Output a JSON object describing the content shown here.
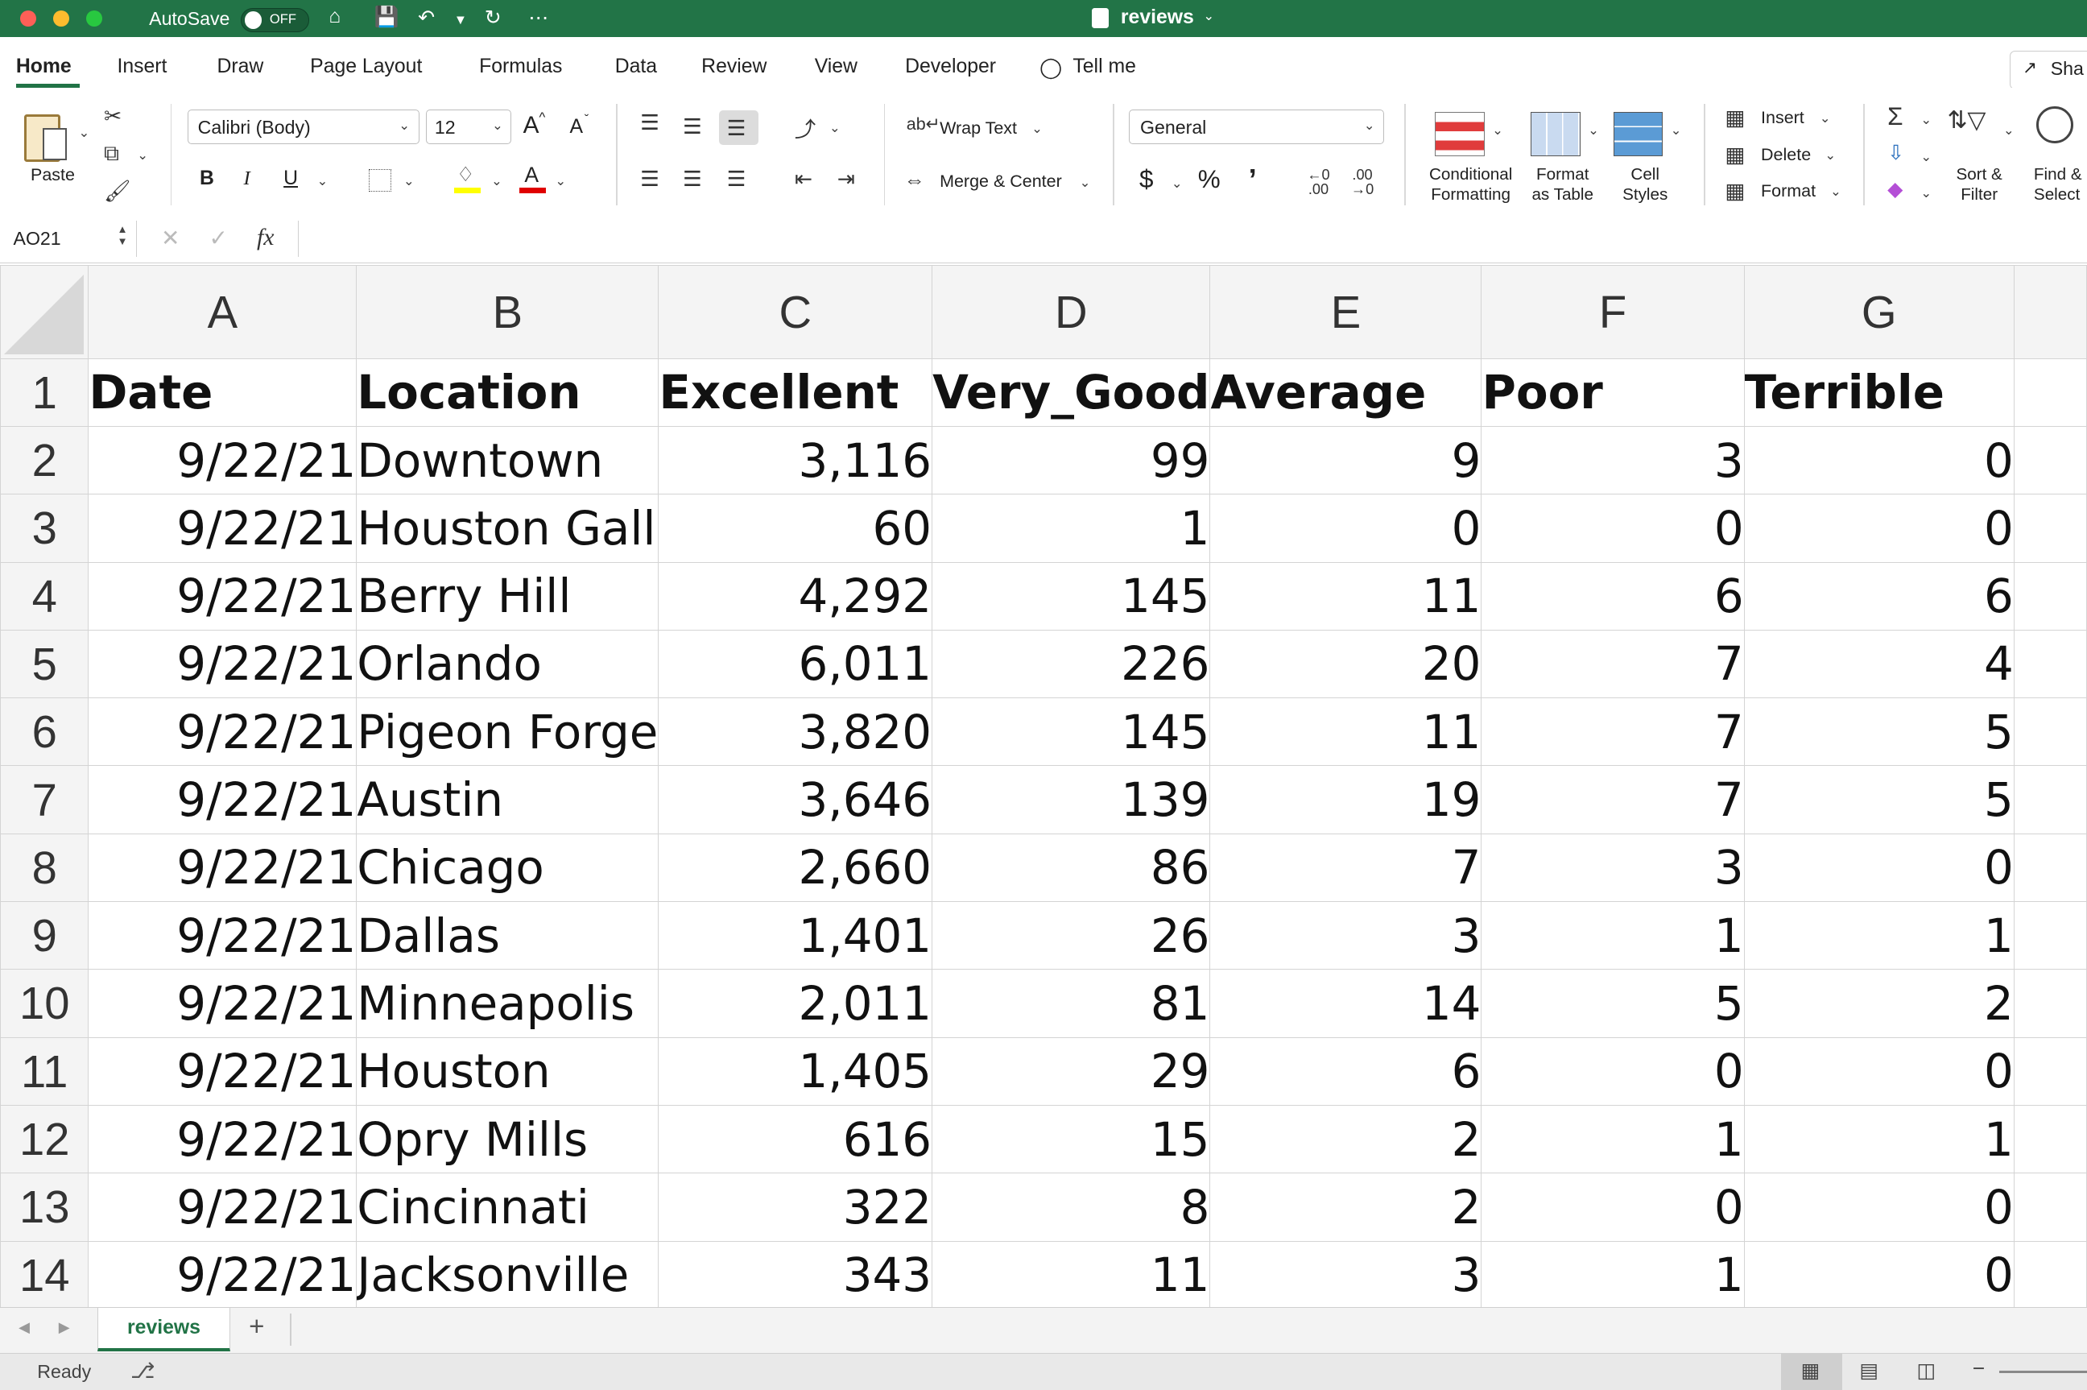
{
  "titlebar": {
    "autosave_label": "AutoSave",
    "autosave_state": "OFF",
    "doc_title": "reviews",
    "color": "#227447"
  },
  "tabs": [
    "Home",
    "Insert",
    "Draw",
    "Page Layout",
    "Formulas",
    "Data",
    "Review",
    "View",
    "Developer",
    "Tell me"
  ],
  "share_label": "Sha",
  "ribbon": {
    "paste": "Paste",
    "font_name": "Calibri (Body)",
    "font_size": "12",
    "grow_font": "A",
    "shrink_font": "A",
    "bold": "B",
    "italic": "I",
    "underline": "U",
    "font_color_letter": "A",
    "wrap_text": "Wrap Text",
    "merge_center": "Merge & Center",
    "number_format": "General",
    "currency": "$",
    "percent": "%",
    "comma": "’",
    "conditional_formatting_1": "Conditional",
    "conditional_formatting_2": "Formatting",
    "format_table_1": "Format",
    "format_table_2": "as Table",
    "cell_styles_1": "Cell",
    "cell_styles_2": "Styles",
    "insert": "Insert",
    "delete": "Delete",
    "format": "Format",
    "sort_filter_1": "Sort &",
    "sort_filter_2": "Filter",
    "find_select_1": "Find &",
    "find_select_2": "Select"
  },
  "formula_bar": {
    "name_box": "AO21",
    "fx": "fx",
    "value": ""
  },
  "columns": [
    "A",
    "B",
    "C",
    "D",
    "E",
    "F",
    "G"
  ],
  "header_row": [
    "Date",
    "Location",
    "Excellent",
    "Very_Good",
    "Average",
    "Poor",
    "Terrible"
  ],
  "rows": [
    [
      "9/22/21",
      "Downtown",
      "3,116",
      "99",
      "9",
      "3",
      "0"
    ],
    [
      "9/22/21",
      "Houston Gall",
      "60",
      "1",
      "0",
      "0",
      "0"
    ],
    [
      "9/22/21",
      "Berry Hill",
      "4,292",
      "145",
      "11",
      "6",
      "6"
    ],
    [
      "9/22/21",
      "Orlando",
      "6,011",
      "226",
      "20",
      "7",
      "4"
    ],
    [
      "9/22/21",
      "Pigeon Forge",
      "3,820",
      "145",
      "11",
      "7",
      "5"
    ],
    [
      "9/22/21",
      "Austin",
      "3,646",
      "139",
      "19",
      "7",
      "5"
    ],
    [
      "9/22/21",
      "Chicago",
      "2,660",
      "86",
      "7",
      "3",
      "0"
    ],
    [
      "9/22/21",
      "Dallas",
      "1,401",
      "26",
      "3",
      "1",
      "1"
    ],
    [
      "9/22/21",
      "Minneapolis",
      "2,011",
      "81",
      "14",
      "5",
      "2"
    ],
    [
      "9/22/21",
      "Houston",
      "1,405",
      "29",
      "6",
      "0",
      "0"
    ],
    [
      "9/22/21",
      "Opry Mills",
      "616",
      "15",
      "2",
      "1",
      "1"
    ],
    [
      "9/22/21",
      "Cincinnati",
      "322",
      "8",
      "2",
      "0",
      "0"
    ],
    [
      "9/22/21",
      "Jacksonville",
      "343",
      "11",
      "3",
      "1",
      "0"
    ]
  ],
  "row_numbers": [
    "1",
    "2",
    "3",
    "4",
    "5",
    "6",
    "7",
    "8",
    "9",
    "10",
    "11",
    "12",
    "13",
    "14"
  ],
  "sheet_tab": "reviews",
  "add_sheet": "+",
  "status": "Ready"
}
